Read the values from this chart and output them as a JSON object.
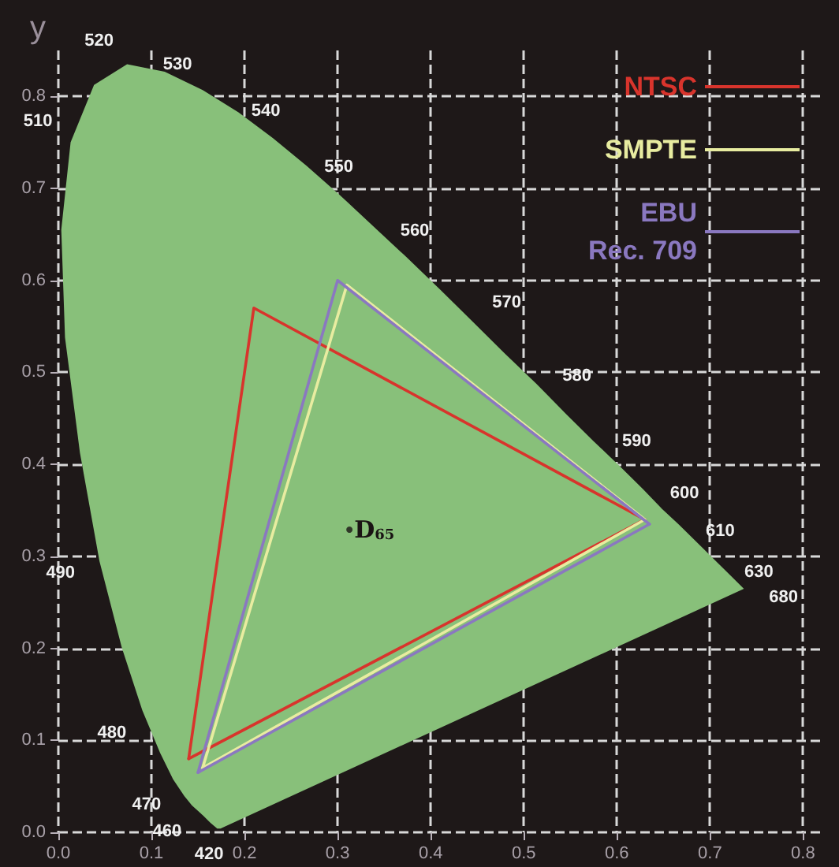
{
  "chart_data": {
    "type": "line",
    "ylabel": "y",
    "xlim": [
      0,
      0.82
    ],
    "ylim": [
      0,
      0.85
    ],
    "xticks": [
      {
        "value": 0,
        "label": "0.0"
      },
      0.1,
      0.2,
      0.3,
      0.4,
      0.5,
      0.6,
      0.7,
      0.8
    ],
    "yticks": [
      {
        "value": 0,
        "label": "0.0"
      },
      0.1,
      0.2,
      0.3,
      0.4,
      0.5,
      0.6,
      0.7,
      0.8
    ],
    "grid": true,
    "legend": "top right",
    "marker": "none",
    "line_style": "solid",
    "series": [
      {
        "type": "area",
        "color": "#88c07a",
        "x": [
          0.174,
          0.171,
          0.164,
          0.157,
          0.144,
          0.136,
          0.124,
          0.11,
          0.091,
          0.069,
          0.045,
          0.024,
          0.008,
          0.004,
          0.014,
          0.039,
          0.074,
          0.114,
          0.155,
          0.193,
          0.23,
          0.266,
          0.302,
          0.337,
          0.373,
          0.409,
          0.444,
          0.479,
          0.513,
          0.545,
          0.575,
          0.603,
          0.627,
          0.648,
          0.666,
          0.692,
          0.708,
          0.719,
          0.735
        ],
        "values": [
          0.005,
          0.005,
          0.011,
          0.018,
          0.03,
          0.04,
          0.058,
          0.087,
          0.133,
          0.201,
          0.295,
          0.413,
          0.538,
          0.655,
          0.75,
          0.812,
          0.834,
          0.826,
          0.806,
          0.782,
          0.754,
          0.724,
          0.692,
          0.659,
          0.625,
          0.59,
          0.555,
          0.52,
          0.487,
          0.454,
          0.424,
          0.397,
          0.373,
          0.351,
          0.334,
          0.308,
          0.292,
          0.281,
          0.265
        ]
      },
      {
        "type": "scatter",
        "color": "#1a1414",
        "marker": "circle",
        "x": [
          0.3127
        ],
        "values": [
          0.329
        ]
      },
      {
        "name": "NTSC",
        "color": "#d8342c",
        "x": [
          0.14,
          0.21,
          0.63
        ],
        "values": [
          0.08,
          0.57,
          0.34
        ]
      },
      {
        "color": "#d8342c",
        "x": [
          0.14,
          0.63
        ],
        "values": [
          0.08,
          0.34
        ]
      },
      {
        "name": "SMPTE",
        "color": "#e8eca0",
        "x": [
          0.155,
          0.31,
          0.63
        ],
        "values": [
          0.07,
          0.595,
          0.34
        ]
      },
      {
        "color": "#e8eca0",
        "x": [
          0.155,
          0.63
        ],
        "values": [
          0.07,
          0.34
        ]
      },
      {
        "name": "EBU\nRec. 709",
        "color": "#8a78c0",
        "x": [
          0.15,
          0.3,
          0.635
        ],
        "values": [
          0.065,
          0.6,
          0.335
        ]
      },
      {
        "color": "#8a78c0",
        "x": [
          0.15,
          0.635
        ],
        "values": [
          0.065,
          0.335
        ]
      }
    ],
    "annotations": [
      {
        "text": "420",
        "x": 0.1714,
        "y": 0.0051
      },
      {
        "text": "460",
        "x": 0.144,
        "y": 0.0297
      },
      {
        "text": "470",
        "x": 0.1241,
        "y": 0.0578
      },
      {
        "text": "480",
        "x": 0.0913,
        "y": 0.1327
      },
      {
        "text": "490",
        "x": 0.0454,
        "y": 0.295
      },
      {
        "text": "510",
        "x": 0.0139,
        "y": 0.7502
      },
      {
        "text": "520",
        "x": 0.0743,
        "y": 0.8338
      },
      {
        "text": "530",
        "x": 0.1547,
        "y": 0.8059
      },
      {
        "text": "540",
        "x": 0.2296,
        "y": 0.7543
      },
      {
        "text": "550",
        "x": 0.3016,
        "y": 0.6923
      },
      {
        "text": "560",
        "x": 0.3731,
        "y": 0.6245
      },
      {
        "text": "570",
        "x": 0.4441,
        "y": 0.5547
      },
      {
        "text": "580",
        "x": 0.5125,
        "y": 0.4866
      },
      {
        "text": "590",
        "x": 0.5752,
        "y": 0.4242
      },
      {
        "text": "600",
        "x": 0.627,
        "y": 0.3725
      },
      {
        "text": "610",
        "x": 0.6658,
        "y": 0.334
      },
      {
        "text": "630",
        "x": 0.7079,
        "y": 0.292
      },
      {
        "text": "680",
        "x": 0.7347,
        "y": 0.2653
      },
      {
        "text": "D$_{65}$",
        "x": 0.3127,
        "y": 0.329
      }
    ]
  }
}
